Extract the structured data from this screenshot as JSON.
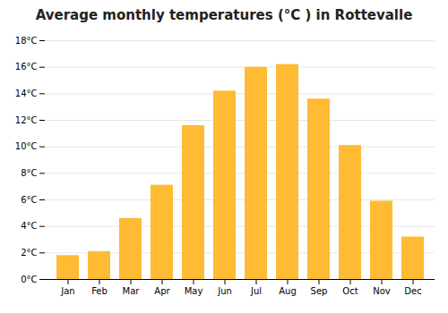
{
  "chart_data": {
    "type": "bar",
    "title": "Average monthly temperatures (°C ) in Rottevalle",
    "categories": [
      "Jan",
      "Feb",
      "Mar",
      "Apr",
      "May",
      "Jun",
      "Jul",
      "Aug",
      "Sep",
      "Oct",
      "Nov",
      "Dec"
    ],
    "values": [
      1.8,
      2.1,
      4.6,
      7.1,
      11.6,
      14.2,
      16.0,
      16.2,
      13.6,
      10.1,
      5.9,
      3.2
    ],
    "color": "#FFBB33",
    "ylim": [
      0,
      18
    ],
    "yticks": [
      {
        "value": 0,
        "label": "0°C"
      },
      {
        "value": 2,
        "label": "2°C"
      },
      {
        "value": 4,
        "label": "4°C"
      },
      {
        "value": 6,
        "label": "6°C"
      },
      {
        "value": 8,
        "label": "8°C"
      },
      {
        "value": 10,
        "label": "10°C"
      },
      {
        "value": 12,
        "label": "12°C"
      },
      {
        "value": 14,
        "label": "14°C"
      },
      {
        "value": 16,
        "label": "16°C"
      },
      {
        "value": 18,
        "label": "18°C"
      }
    ],
    "grid": true
  }
}
